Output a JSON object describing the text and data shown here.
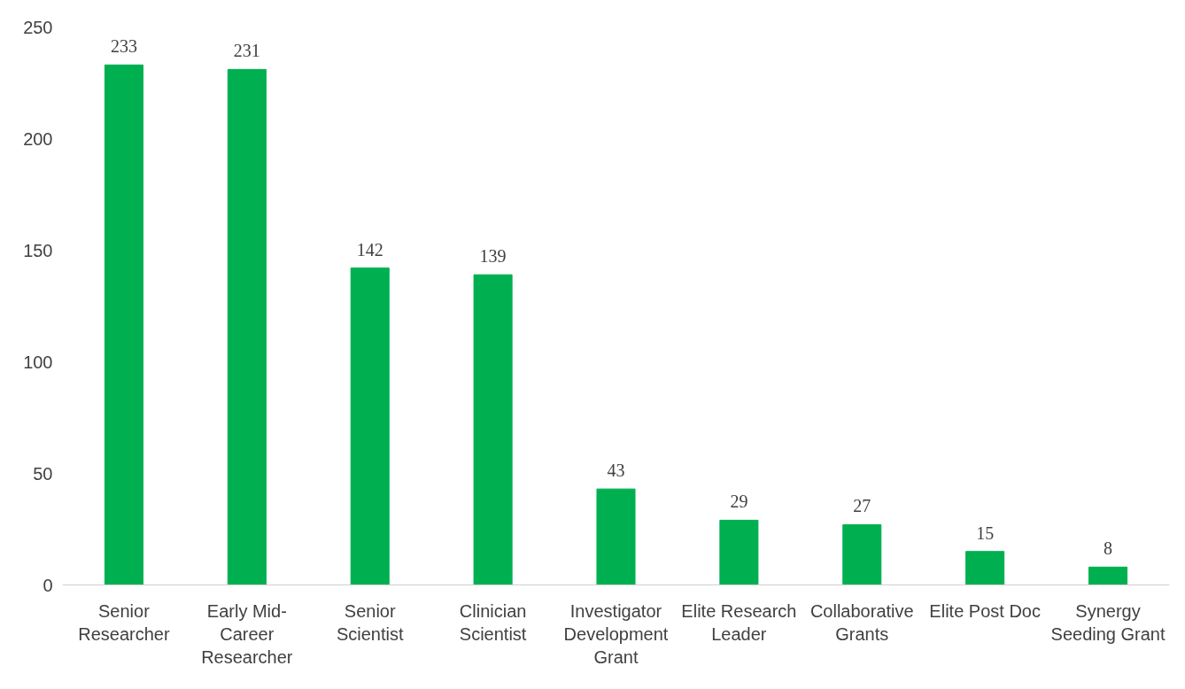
{
  "chart_data": {
    "type": "bar",
    "categories": [
      "Senior\nResearcher",
      "Early Mid-\nCareer\nResearcher",
      "Senior\nScientist",
      "Clinician\nScientist",
      "Investigator\nDevelopment\nGrant",
      "Elite Research\nLeader",
      "Collaborative\nGrants",
      "Elite Post Doc",
      "Synergy\nSeeding Grant"
    ],
    "values": [
      233,
      231,
      142,
      139,
      43,
      29,
      27,
      15,
      8
    ],
    "color": "#00b050",
    "ylim": [
      0,
      250
    ],
    "yticks": [
      0,
      50,
      100,
      150,
      200,
      250
    ],
    "grid": false,
    "data_labels": true
  }
}
